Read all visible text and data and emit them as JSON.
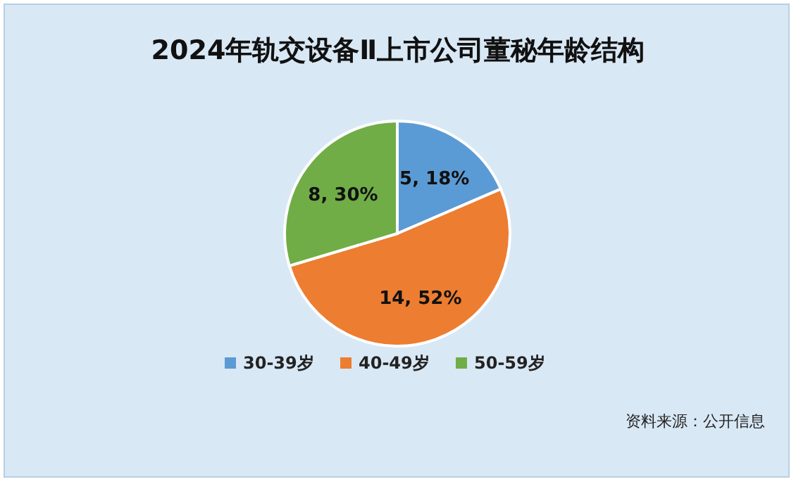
{
  "chart_data": {
    "type": "pie",
    "title": "2024年轨交设备Ⅱ上市公司董秘年龄结构",
    "categories": [
      "30-39岁",
      "40-49岁",
      "50-59岁"
    ],
    "values": [
      5,
      14,
      8
    ],
    "colors": [
      "#5b9bd5",
      "#ed7d31",
      "#70ad47"
    ],
    "value_labels": [
      "5, 18%",
      "14, 52%",
      "8, 30%"
    ],
    "legend": "bottom",
    "annotations": [
      "资料来源：公开信息"
    ]
  }
}
